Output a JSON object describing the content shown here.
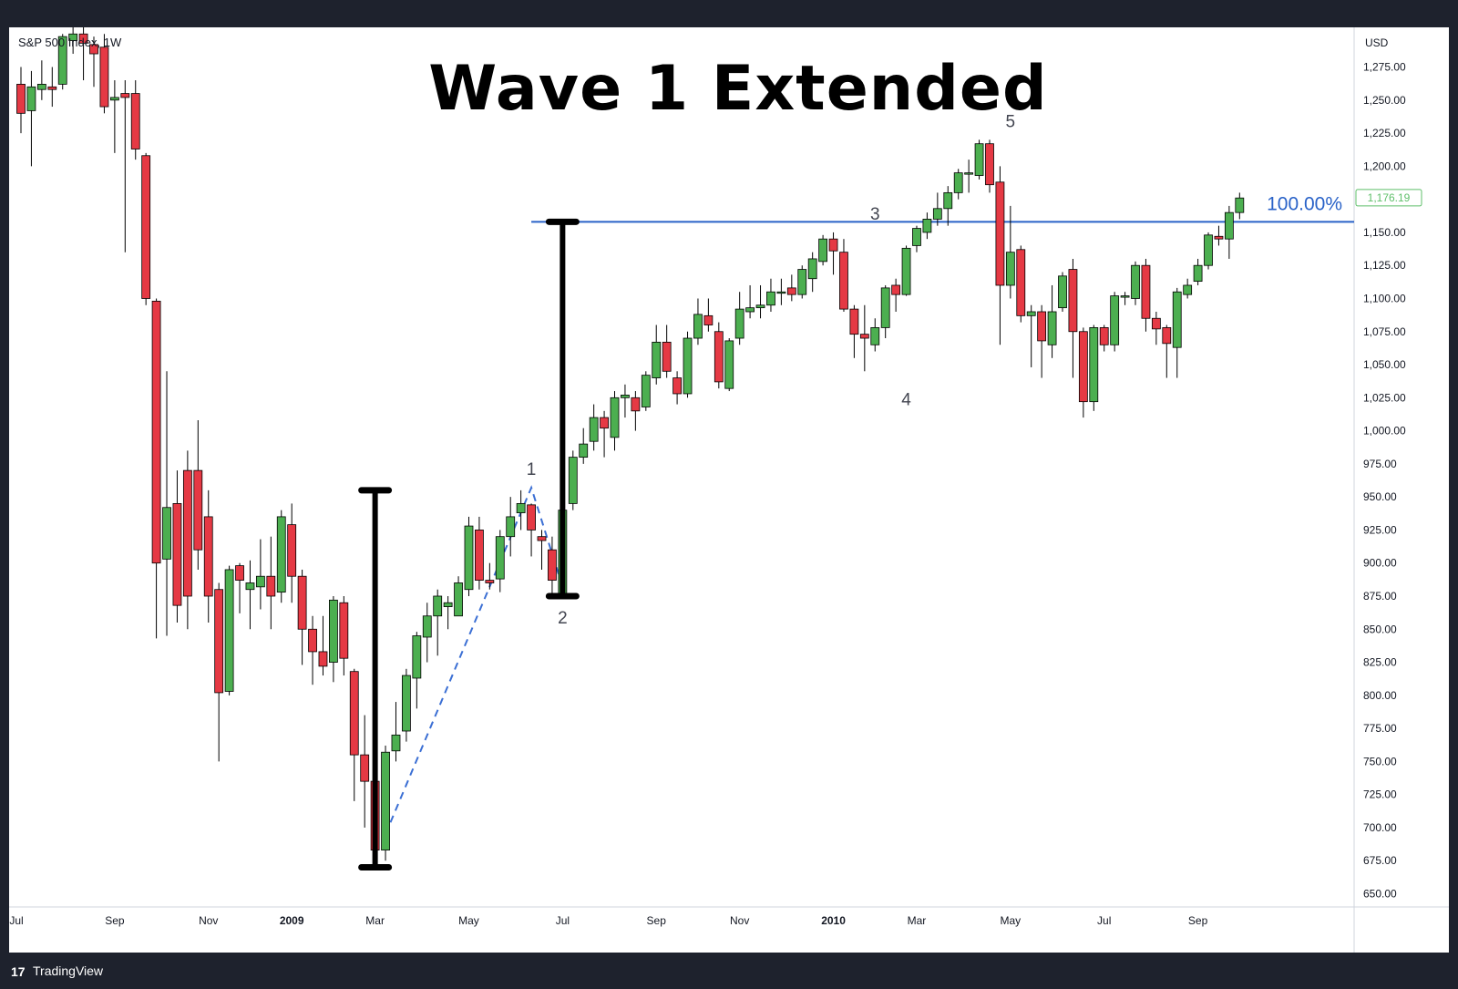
{
  "header": {
    "symbol": "S&P 500 Index, 1W",
    "currency": "USD",
    "title": "Wave 1 Extended"
  },
  "footer": {
    "logo_mark": "17",
    "brand": "TradingView"
  },
  "colors": {
    "up": "#4caf50",
    "down": "#e53944",
    "wick": "#000000",
    "fib": "#2962c8",
    "dash": "#3b6fd4",
    "last_price": "#5fbf6a"
  },
  "chart_data": {
    "type": "candlestick",
    "title": "Wave 1 Extended",
    "ylim": [
      640,
      1305
    ],
    "y_ticks": [
      1275,
      1250,
      1225,
      1200,
      1175,
      1150,
      1125,
      1100,
      1075,
      1050,
      1025,
      1000,
      975,
      950,
      925,
      900,
      875,
      850,
      825,
      800,
      775,
      750,
      725,
      700,
      675,
      650
    ],
    "y_tick_labels": [
      "1,275.00",
      "1,250.00",
      "1,225.00",
      "1,200.00",
      "1,175.00",
      "1,150.00",
      "1,125.00",
      "1,100.00",
      "1,075.00",
      "1,050.00",
      "1,025.00",
      "1,000.00",
      "975.00",
      "950.00",
      "925.00",
      "900.00",
      "875.00",
      "850.00",
      "825.00",
      "800.00",
      "775.00",
      "750.00",
      "725.00",
      "700.00",
      "675.00",
      "650.00"
    ],
    "x_labels": [
      {
        "label": "Jul",
        "week": -1,
        "bold": false
      },
      {
        "label": "Sep",
        "week": 9,
        "bold": false
      },
      {
        "label": "Nov",
        "week": 18,
        "bold": false
      },
      {
        "label": "2009",
        "week": 26,
        "bold": true
      },
      {
        "label": "Mar",
        "week": 34,
        "bold": false
      },
      {
        "label": "May",
        "week": 43,
        "bold": false
      },
      {
        "label": "Jul",
        "week": 52,
        "bold": false
      },
      {
        "label": "Sep",
        "week": 61,
        "bold": false
      },
      {
        "label": "Nov",
        "week": 69,
        "bold": false
      },
      {
        "label": "2010",
        "week": 78,
        "bold": true
      },
      {
        "label": "Mar",
        "week": 86,
        "bold": false
      },
      {
        "label": "May",
        "week": 95,
        "bold": false
      },
      {
        "label": "Jul",
        "week": 104,
        "bold": false
      },
      {
        "label": "Sep",
        "week": 113,
        "bold": false
      }
    ],
    "candles": [
      [
        1262,
        1240,
        1275,
        1225
      ],
      [
        1242,
        1260,
        1272,
        1200
      ],
      [
        1258,
        1262,
        1280,
        1250
      ],
      [
        1260,
        1258,
        1275,
        1245
      ],
      [
        1262,
        1298,
        1300,
        1258
      ],
      [
        1295,
        1300,
        1305,
        1285
      ],
      [
        1300,
        1293,
        1305,
        1265
      ],
      [
        1292,
        1285,
        1298,
        1260
      ],
      [
        1290,
        1245,
        1300,
        1240
      ],
      [
        1250,
        1252,
        1265,
        1210
      ],
      [
        1255,
        1252,
        1265,
        1135
      ],
      [
        1255,
        1213,
        1265,
        1205
      ],
      [
        1208,
        1100,
        1210,
        1095
      ],
      [
        1098,
        900,
        1100,
        843
      ],
      [
        903,
        942,
        1045,
        845
      ],
      [
        945,
        868,
        970,
        855
      ],
      [
        970,
        875,
        985,
        850
      ],
      [
        970,
        910,
        1008,
        895
      ],
      [
        935,
        875,
        955,
        855
      ],
      [
        880,
        802,
        885,
        750
      ],
      [
        803,
        895,
        898,
        800
      ],
      [
        898,
        887,
        900,
        862
      ],
      [
        880,
        885,
        902,
        850
      ],
      [
        882,
        890,
        918,
        865
      ],
      [
        890,
        875,
        920,
        850
      ],
      [
        878,
        935,
        940,
        870
      ],
      [
        929,
        890,
        945,
        870
      ],
      [
        890,
        850,
        895,
        823
      ],
      [
        850,
        833,
        860,
        808
      ],
      [
        833,
        822,
        860,
        815
      ],
      [
        825,
        872,
        875,
        810
      ],
      [
        870,
        828,
        875,
        815
      ],
      [
        818,
        755,
        820,
        720
      ],
      [
        755,
        735,
        785,
        700
      ],
      [
        735,
        683,
        740,
        675
      ],
      [
        683,
        757,
        762,
        675
      ],
      [
        758,
        770,
        795,
        750
      ],
      [
        773,
        815,
        820,
        765
      ],
      [
        813,
        845,
        848,
        790
      ],
      [
        844,
        860,
        870,
        825
      ],
      [
        860,
        875,
        880,
        830
      ],
      [
        867,
        870,
        875,
        850
      ],
      [
        860,
        885,
        890,
        865
      ],
      [
        880,
        928,
        935,
        875
      ],
      [
        925,
        887,
        935,
        880
      ],
      [
        887,
        885,
        900,
        880
      ],
      [
        888,
        920,
        925,
        878
      ],
      [
        920,
        935,
        950,
        905
      ],
      [
        938,
        945,
        955,
        925
      ],
      [
        944,
        925,
        945,
        905
      ],
      [
        920,
        917,
        925,
        895
      ],
      [
        910,
        887,
        920,
        875
      ],
      [
        877,
        940,
        945,
        875
      ],
      [
        945,
        980,
        985,
        940
      ],
      [
        980,
        990,
        1002,
        975
      ],
      [
        992,
        1010,
        1020,
        985
      ],
      [
        1010,
        1002,
        1015,
        980
      ],
      [
        995,
        1025,
        1030,
        985
      ],
      [
        1025,
        1027,
        1035,
        1010
      ],
      [
        1025,
        1015,
        1030,
        1000
      ],
      [
        1018,
        1042,
        1045,
        1015
      ],
      [
        1040,
        1067,
        1080,
        1035
      ],
      [
        1067,
        1045,
        1080,
        1040
      ],
      [
        1040,
        1028,
        1045,
        1020
      ],
      [
        1028,
        1070,
        1075,
        1025
      ],
      [
        1070,
        1088,
        1100,
        1065
      ],
      [
        1087,
        1080,
        1100,
        1075
      ],
      [
        1075,
        1037,
        1082,
        1032
      ],
      [
        1032,
        1068,
        1070,
        1030
      ],
      [
        1070,
        1092,
        1105,
        1065
      ],
      [
        1090,
        1093,
        1110,
        1085
      ],
      [
        1093,
        1095,
        1110,
        1085
      ],
      [
        1095,
        1105,
        1115,
        1090
      ],
      [
        1105,
        1105,
        1115,
        1095
      ],
      [
        1108,
        1103,
        1118,
        1098
      ],
      [
        1103,
        1122,
        1125,
        1100
      ],
      [
        1115,
        1130,
        1135,
        1105
      ],
      [
        1128,
        1145,
        1148,
        1125
      ],
      [
        1145,
        1136,
        1150,
        1118
      ],
      [
        1135,
        1092,
        1145,
        1090
      ],
      [
        1092,
        1073,
        1095,
        1055
      ],
      [
        1073,
        1070,
        1095,
        1045
      ],
      [
        1065,
        1078,
        1085,
        1060
      ],
      [
        1078,
        1108,
        1110,
        1070
      ],
      [
        1110,
        1103,
        1115,
        1090
      ],
      [
        1103,
        1138,
        1140,
        1102
      ],
      [
        1140,
        1153,
        1155,
        1135
      ],
      [
        1150,
        1160,
        1165,
        1145
      ],
      [
        1160,
        1168,
        1180,
        1155
      ],
      [
        1168,
        1180,
        1185,
        1155
      ],
      [
        1180,
        1195,
        1198,
        1175
      ],
      [
        1195,
        1195,
        1205,
        1180
      ],
      [
        1193,
        1217,
        1220,
        1190
      ],
      [
        1217,
        1186,
        1220,
        1180
      ],
      [
        1188,
        1110,
        1200,
        1065
      ],
      [
        1110,
        1135,
        1170,
        1100
      ],
      [
        1137,
        1087,
        1140,
        1082
      ],
      [
        1087,
        1090,
        1095,
        1048
      ],
      [
        1090,
        1068,
        1095,
        1040
      ],
      [
        1065,
        1090,
        1110,
        1055
      ],
      [
        1093,
        1117,
        1120,
        1090
      ],
      [
        1122,
        1075,
        1130,
        1040
      ],
      [
        1075,
        1022,
        1078,
        1010
      ],
      [
        1022,
        1078,
        1080,
        1015
      ],
      [
        1078,
        1065,
        1080,
        1060
      ],
      [
        1065,
        1102,
        1105,
        1060
      ],
      [
        1102,
        1102,
        1105,
        1095
      ],
      [
        1100,
        1125,
        1128,
        1095
      ],
      [
        1125,
        1085,
        1130,
        1075
      ],
      [
        1085,
        1077,
        1090,
        1065
      ],
      [
        1078,
        1066,
        1080,
        1040
      ],
      [
        1063,
        1105,
        1108,
        1040
      ],
      [
        1103,
        1110,
        1115,
        1100
      ],
      [
        1113,
        1125,
        1130,
        1110
      ],
      [
        1125,
        1148,
        1150,
        1122
      ],
      [
        1147,
        1145,
        1155,
        1140
      ],
      [
        1145,
        1165,
        1170,
        1130
      ],
      [
        1165,
        1176,
        1180,
        1160
      ]
    ],
    "wave_labels": [
      {
        "label": "1",
        "week": 49,
        "price": 957,
        "pos": "above"
      },
      {
        "label": "2",
        "week": 52,
        "price": 875,
        "pos": "below"
      },
      {
        "label": "3",
        "week": 82,
        "price": 1150,
        "pos": "above"
      },
      {
        "label": "4",
        "week": 85,
        "price": 1040,
        "pos": "below"
      },
      {
        "label": "5",
        "week": 95,
        "price": 1220,
        "pos": "above"
      }
    ],
    "fib_line": {
      "price": 1158,
      "from_week": 49,
      "label": "100.00%"
    },
    "last_price": {
      "value": 1176.19,
      "label": "1,176.19"
    },
    "measure_bars": [
      {
        "week": 34,
        "low": 670,
        "high": 955
      },
      {
        "week": 52,
        "low": 875,
        "high": 1158
      }
    ],
    "dashed_path": [
      {
        "week": 35,
        "price": 695
      },
      {
        "week": 49,
        "price": 957
      },
      {
        "week": 52,
        "price": 882
      }
    ]
  }
}
